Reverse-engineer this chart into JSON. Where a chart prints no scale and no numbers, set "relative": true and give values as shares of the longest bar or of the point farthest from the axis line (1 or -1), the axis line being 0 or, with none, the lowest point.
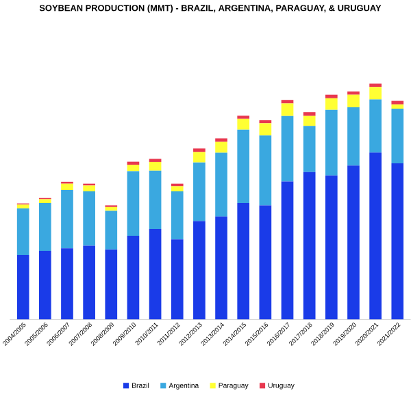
{
  "chart_data": {
    "type": "bar",
    "title": "SOYBEAN PRODUCTION (MMT) - BRAZIL, ARGENTINA, PARAGUAY, & URUGUAY",
    "stacked": true,
    "relative": true,
    "legend": "bottom",
    "categories": [
      "2004/2005",
      "2005/2006",
      "2006/2007",
      "2007/2008",
      "2008/2009",
      "2009/2010",
      "2010/2011",
      "2011/2012",
      "2012/2013",
      "2013/2014",
      "2014/2015",
      "2015/2016",
      "2016/2017",
      "2017/2018",
      "2018/2019",
      "2019/2020",
      "2020/2021",
      "2021/2022"
    ],
    "series": [
      {
        "name": "Brazil",
        "color": "#1a3be8",
        "values": [
          0.274,
          0.291,
          0.302,
          0.313,
          0.296,
          0.355,
          0.384,
          0.34,
          0.417,
          0.437,
          0.494,
          0.484,
          0.585,
          0.625,
          0.611,
          0.653,
          0.708,
          0.662
        ]
      },
      {
        "name": "Argentina",
        "color": "#3aa8e0",
        "values": [
          0.197,
          0.203,
          0.247,
          0.23,
          0.165,
          0.274,
          0.247,
          0.203,
          0.249,
          0.27,
          0.311,
          0.296,
          0.278,
          0.196,
          0.278,
          0.247,
          0.225,
          0.232
        ]
      },
      {
        "name": "Paraguay",
        "color": "#ffff33",
        "values": [
          0.016,
          0.016,
          0.027,
          0.025,
          0.016,
          0.027,
          0.037,
          0.022,
          0.044,
          0.046,
          0.046,
          0.052,
          0.053,
          0.042,
          0.049,
          0.053,
          0.053,
          0.018
        ]
      },
      {
        "name": "Uruguay",
        "color": "#e8384f",
        "values": [
          0.005,
          0.005,
          0.008,
          0.008,
          0.007,
          0.013,
          0.013,
          0.011,
          0.015,
          0.015,
          0.013,
          0.013,
          0.015,
          0.016,
          0.015,
          0.014,
          0.014,
          0.015
        ]
      }
    ]
  }
}
